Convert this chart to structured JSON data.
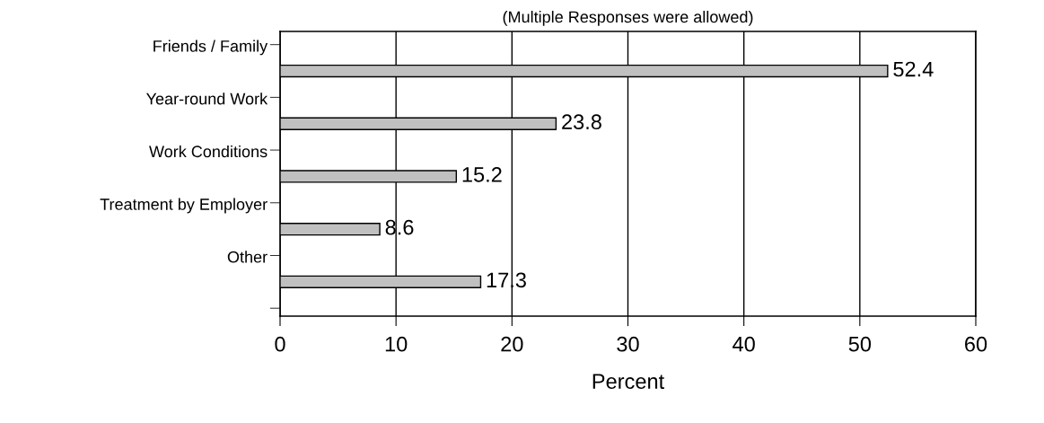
{
  "chart_data": {
    "type": "bar",
    "orientation": "horizontal",
    "title": "(Multiple Responses were allowed)",
    "xlabel": "Percent",
    "categories": [
      "Friends / Family",
      "Year-round Work",
      "Work Conditions",
      "Treatment by Employer",
      "Other"
    ],
    "values": [
      52.4,
      23.8,
      15.2,
      8.6,
      17.3
    ],
    "color": "#c0c0c0",
    "xlim": [
      0,
      60
    ],
    "xticks": [
      0,
      10,
      20,
      30,
      40,
      50,
      60
    ],
    "grid": "x",
    "data_labels": true,
    "legend": false
  }
}
